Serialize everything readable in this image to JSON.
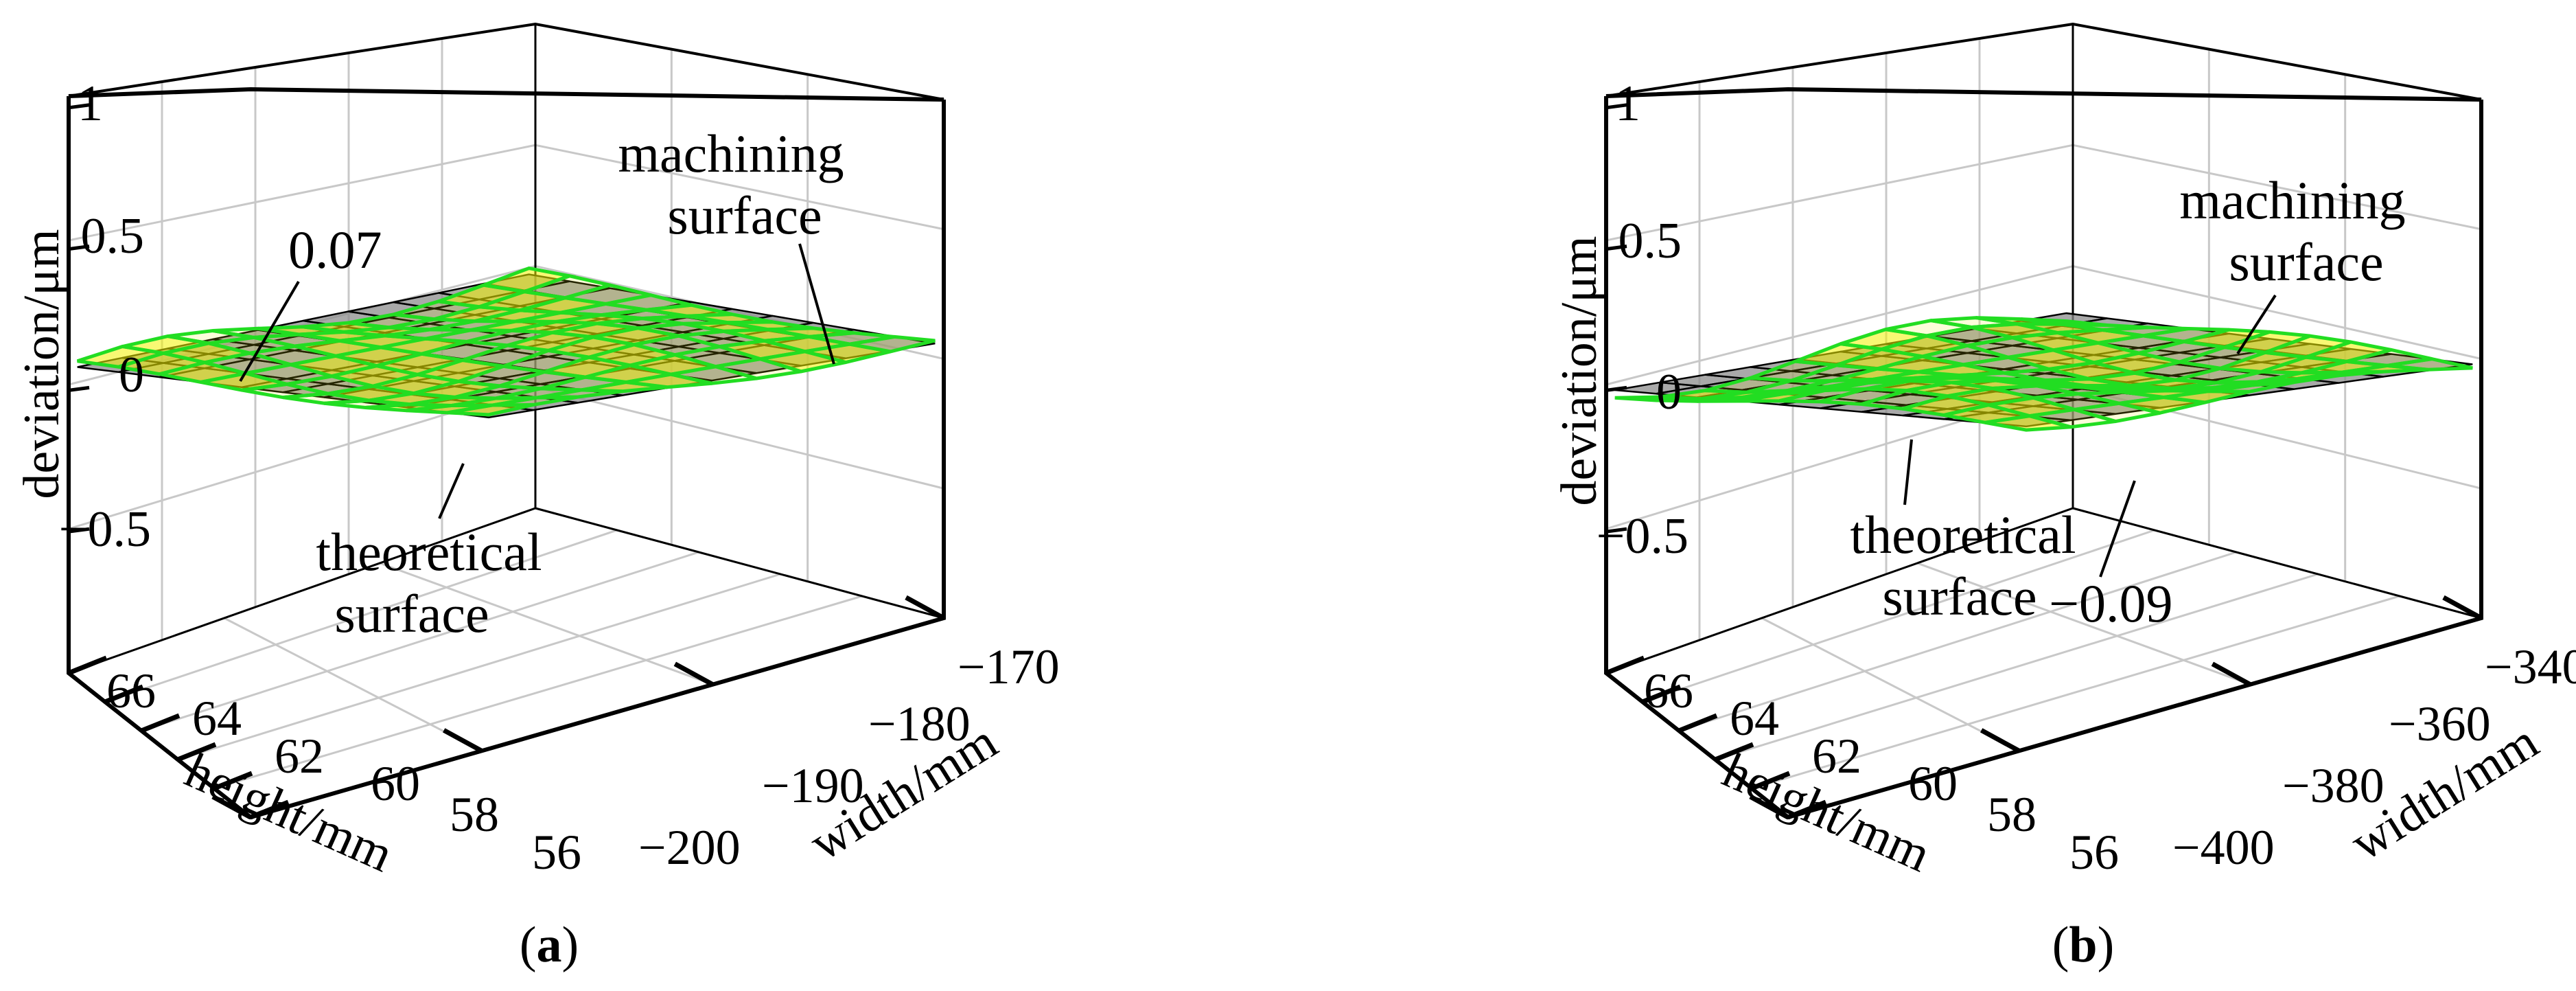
{
  "chart_data": [
    {
      "type": "surface3d",
      "panel_label": "a",
      "zlabel": "deviation/μm",
      "xlabel": "height/mm",
      "ylabel": "width/mm",
      "z_ticks": [
        "1",
        "0.5",
        "0",
        "−0.5"
      ],
      "z_tick_values": [
        1,
        0.5,
        0,
        -0.5
      ],
      "zlim": [
        -1,
        1
      ],
      "height_ticks": [
        "66",
        "64",
        "62",
        "60",
        "58",
        "56"
      ],
      "height_tick_values": [
        66,
        64,
        62,
        60,
        58,
        56
      ],
      "xlim": [
        56,
        66
      ],
      "width_ticks": [
        "−170",
        "−180",
        "−190",
        "−200"
      ],
      "width_tick_values": [
        -170,
        -180,
        -190,
        -200
      ],
      "ylim": [
        -200,
        -170
      ],
      "grid": true,
      "series": [
        {
          "name": "machining surface",
          "color": "#f2f200",
          "edge_color": "#22dd22"
        },
        {
          "name": "theoretical surface",
          "color": "#8c8c8c",
          "edge_color": "#000000"
        }
      ],
      "annotations": {
        "machining_l1": "machining",
        "machining_l2": "surface",
        "theoretical_l1": "theoretical",
        "theoretical_l2": "surface",
        "extreme": "0.07"
      },
      "extreme_value": 0.07
    },
    {
      "type": "surface3d",
      "panel_label": "b",
      "zlabel": "deviation/μm",
      "xlabel": "height/mm",
      "ylabel": "width/mm",
      "z_ticks": [
        "1",
        "0.5",
        "0",
        "−0.5"
      ],
      "z_tick_values": [
        1,
        0.5,
        0,
        -0.5
      ],
      "zlim": [
        -1,
        1
      ],
      "height_ticks": [
        "66",
        "64",
        "62",
        "60",
        "58",
        "56"
      ],
      "height_tick_values": [
        66,
        64,
        62,
        60,
        58,
        56
      ],
      "xlim": [
        56,
        66
      ],
      "width_ticks": [
        "−340",
        "−360",
        "−380",
        "−400"
      ],
      "width_tick_values": [
        -340,
        -360,
        -380,
        -400
      ],
      "ylim": [
        -400,
        -340
      ],
      "grid": true,
      "series": [
        {
          "name": "machining surface",
          "color": "#f2f200",
          "edge_color": "#22dd22"
        },
        {
          "name": "theoretical surface",
          "color": "#8c8c8c",
          "edge_color": "#000000"
        }
      ],
      "annotations": {
        "machining_l1": "machining",
        "machining_l2": "surface",
        "theoretical_l1": "theoretical",
        "theoretical_l2": "surface",
        "extreme": "−0.09"
      },
      "extreme_value": -0.09
    }
  ]
}
